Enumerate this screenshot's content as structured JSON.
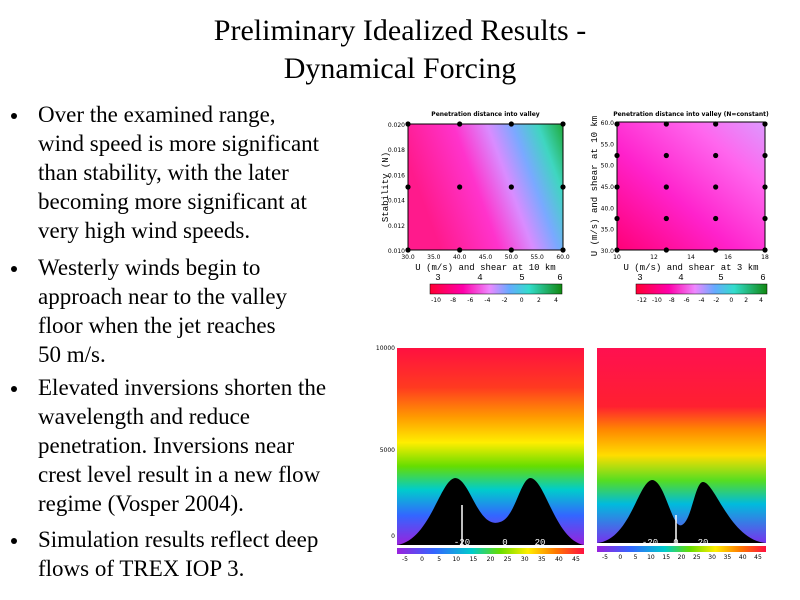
{
  "title": [
    "Preliminary Idealized Results -",
    "Dynamical Forcing"
  ],
  "bullets": [
    [
      "Over the examined range,",
      "wind speed is more significant",
      "than stability, with the later",
      "becoming more significant at",
      "very high wind speeds."
    ],
    [
      "Westerly winds begin to",
      "approach near to the valley",
      "floor when the jet reaches",
      "50 m/s."
    ],
    [
      "Elevated inversions shorten the",
      "wavelength and reduce",
      "penetration. Inversions near",
      "crest level result in a new flow",
      "regime (Vosper 2004)."
    ],
    [
      "Simulation results reflect deep",
      "flows of TREX IOP 3."
    ]
  ],
  "plots": [
    {
      "title": "Penetration distance into valley",
      "ylabel": "Stability (N)",
      "yticks": [
        "0.020",
        "0.018",
        "0.016",
        "0.014",
        "0.012",
        "0.010"
      ],
      "xlabel": "U (m/s) and shear at 10 km",
      "xticks": [
        "30.0",
        "35.0",
        "40.0",
        "45.0",
        "50.0",
        "55.0",
        "60.0"
      ],
      "levels": [
        "3",
        "4",
        "5",
        "6"
      ],
      "cbar": [
        "-10",
        "-8",
        "-6",
        "-4",
        "-2",
        "0",
        "2",
        "4"
      ]
    },
    {
      "title": "Penetration distance into valley (N=constant)",
      "ylabel": "U (m/s) and shear at 10 km",
      "yticks": [
        "60.0",
        "55.0",
        "50.0",
        "45.0",
        "40.0",
        "35.0",
        "30.0"
      ],
      "xlabel": "U (m/s) and shear at 3 km",
      "xticks": [
        "10",
        "12",
        "14",
        "16",
        "18"
      ],
      "levels": [
        "3",
        "4",
        "5",
        "6"
      ],
      "cbar": [
        "-12",
        "-10",
        "-8",
        "-6",
        "-4",
        "-2",
        "0",
        "2",
        "4"
      ]
    }
  ],
  "sections": [
    {
      "yticks": [
        "10000",
        "5000",
        "0"
      ],
      "xticks": [
        "-20",
        "0",
        "20"
      ],
      "cbar": [
        "-5",
        "0",
        "5",
        "10",
        "15",
        "20",
        "25",
        "30",
        "35",
        "40",
        "45"
      ]
    },
    {
      "xticks": [
        "-20",
        "0",
        "20"
      ],
      "cbar": [
        "-5",
        "0",
        "5",
        "10",
        "15",
        "20",
        "25",
        "30",
        "35",
        "40",
        "45"
      ]
    }
  ]
}
